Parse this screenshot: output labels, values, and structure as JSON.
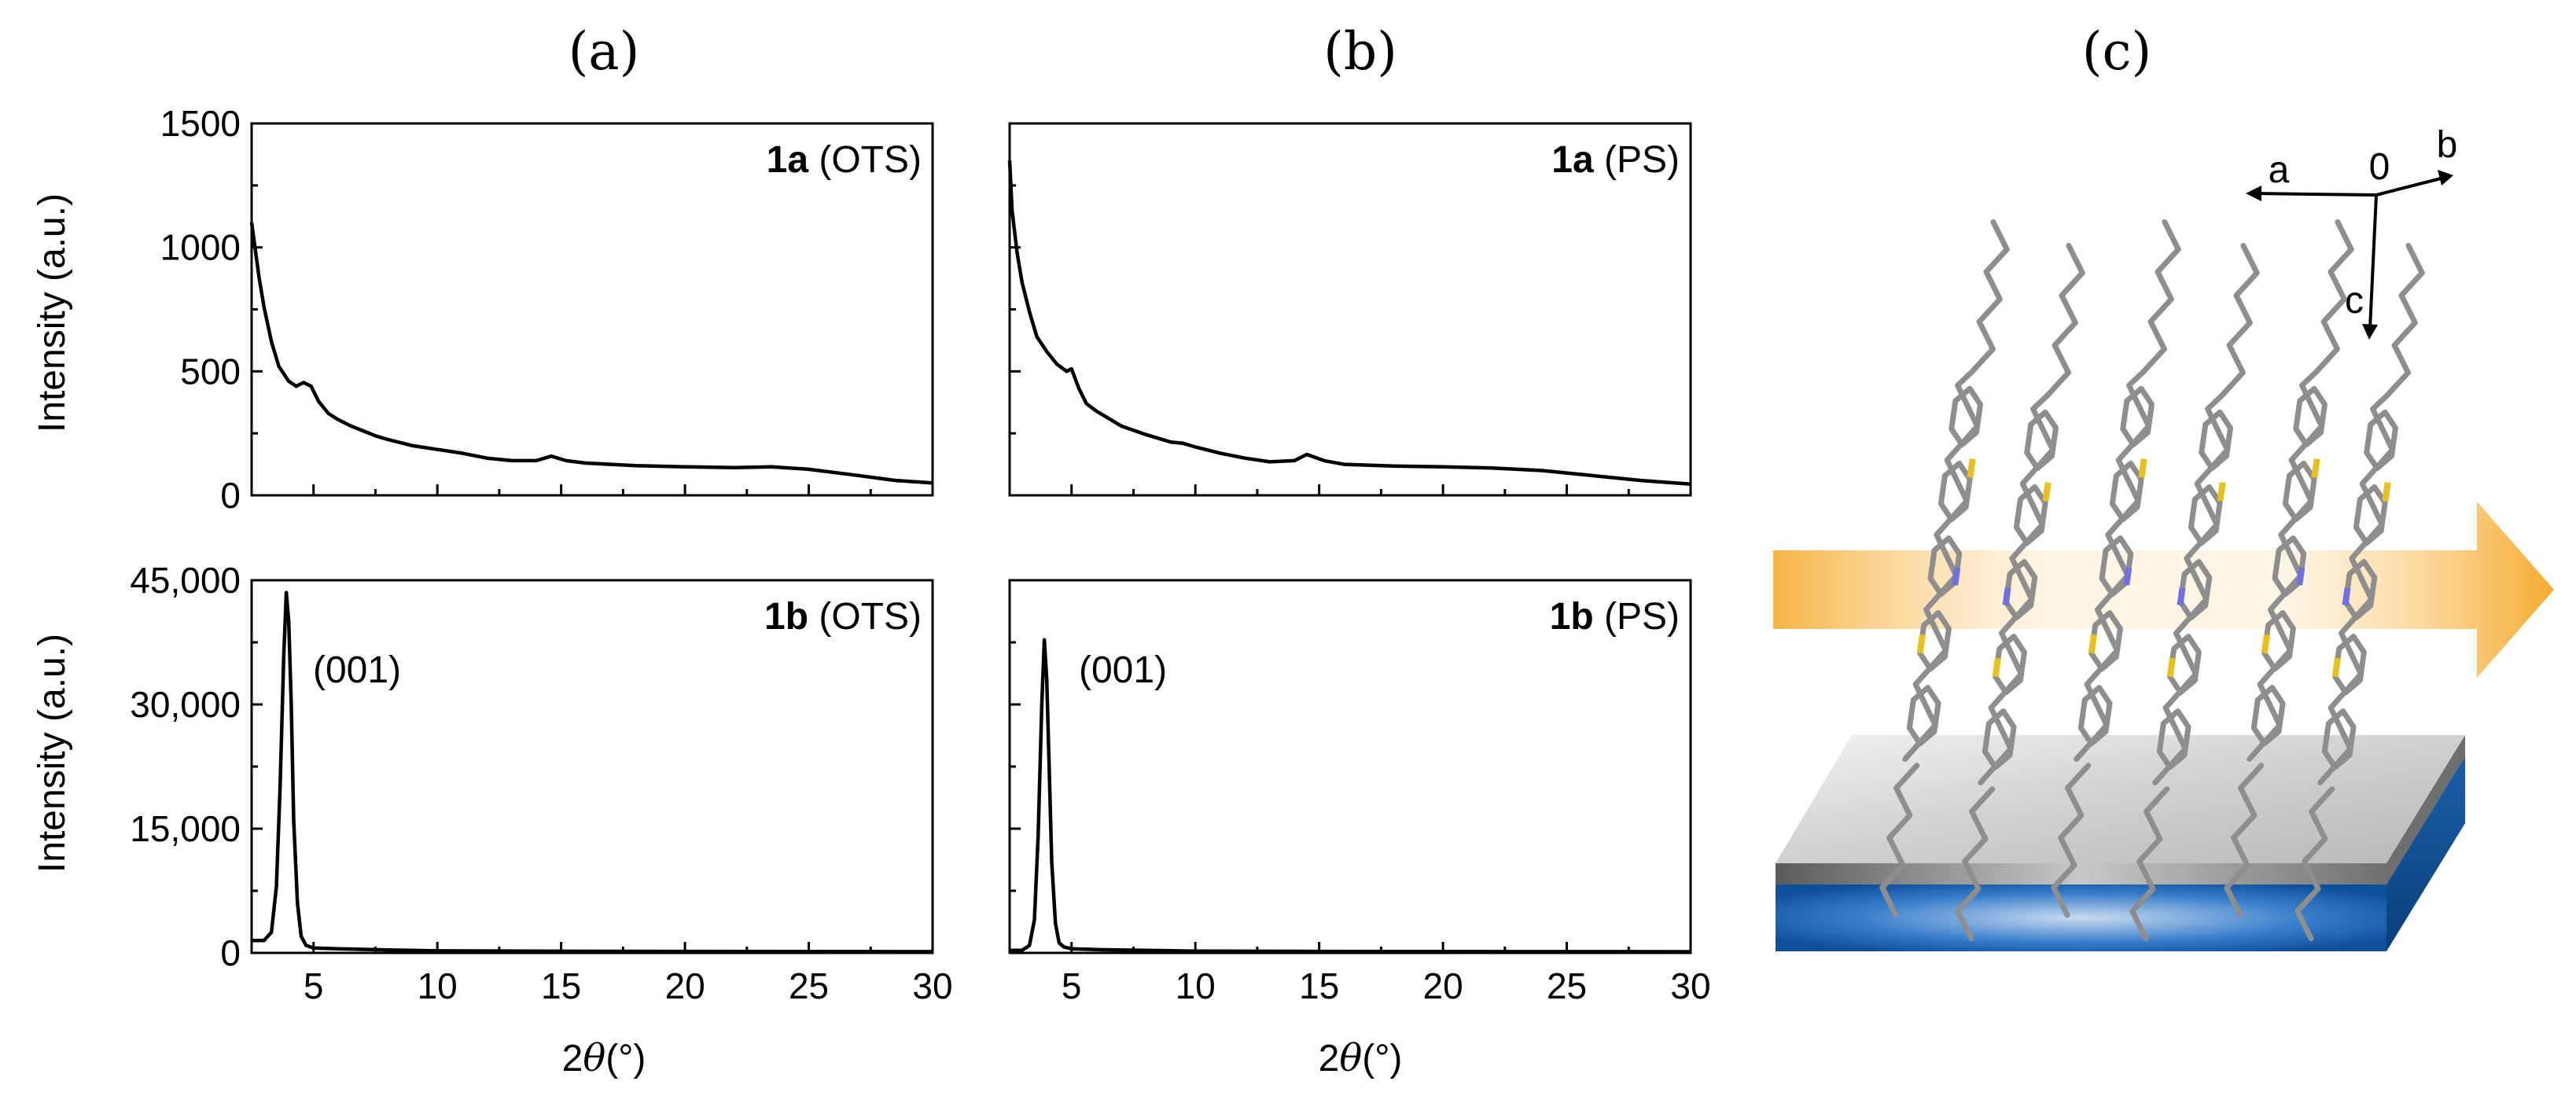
{
  "panel_labels": [
    "(a)",
    "(b)",
    "(c)"
  ],
  "axis_titles": {
    "x": "2θ(°)",
    "x_symbol": "θ",
    "x_prefix": "2",
    "x_suffix": "(°)",
    "y": "Intensity (a.u.)"
  },
  "chart_data": [
    {
      "id": "a-top",
      "type": "line",
      "panel": "(a)",
      "label_bold": "1a",
      "label_rest": " (OTS)",
      "xlim": [
        2.5,
        30
      ],
      "ylim": [
        0,
        1500
      ],
      "xticks": [
        5,
        10,
        15,
        20,
        25,
        30
      ],
      "yticks": [
        0,
        500,
        1000,
        1500
      ],
      "ytick_labels": [
        "0",
        "500",
        "1000",
        "1500"
      ],
      "series": [
        {
          "name": "1a (OTS)",
          "x": [
            2.5,
            2.8,
            3.0,
            3.3,
            3.6,
            4.0,
            4.3,
            4.6,
            4.9,
            5.2,
            5.6,
            6.0,
            6.5,
            7.0,
            7.5,
            8.0,
            9.0,
            10.0,
            11.0,
            12.0,
            13.0,
            14.0,
            14.6,
            15.2,
            16.0,
            18.0,
            20.0,
            22.0,
            23.5,
            25.0,
            27.0,
            28.5,
            30.0
          ],
          "y": [
            1100,
            880,
            760,
            620,
            520,
            460,
            440,
            455,
            440,
            380,
            330,
            305,
            280,
            260,
            240,
            225,
            200,
            185,
            170,
            150,
            140,
            140,
            158,
            140,
            130,
            120,
            115,
            112,
            115,
            105,
            80,
            60,
            50
          ]
        }
      ]
    },
    {
      "id": "a-bottom",
      "type": "line",
      "panel": "(a)",
      "label_bold": "1b",
      "label_rest": " (OTS)",
      "annotation": "(001)",
      "xlim": [
        2.5,
        30
      ],
      "ylim": [
        0,
        45000
      ],
      "xticks": [
        5,
        10,
        15,
        20,
        25,
        30
      ],
      "xtick_labels": [
        "5",
        "10",
        "15",
        "20",
        "25",
        "30"
      ],
      "yticks": [
        0,
        15000,
        30000,
        45000
      ],
      "ytick_labels": [
        "0",
        "15,000",
        "30,000",
        "45,000"
      ],
      "series": [
        {
          "name": "1b (OTS)",
          "x": [
            2.5,
            3.0,
            3.3,
            3.5,
            3.65,
            3.8,
            3.9,
            4.0,
            4.1,
            4.2,
            4.35,
            4.5,
            4.7,
            5.0,
            6.0,
            8.0,
            10.0,
            15.0,
            20.0,
            25.0,
            30.0
          ],
          "y": [
            1500,
            1500,
            2500,
            8000,
            20000,
            36000,
            43500,
            40000,
            30000,
            16000,
            6000,
            2000,
            900,
            600,
            500,
            350,
            250,
            200,
            180,
            160,
            150
          ]
        }
      ]
    },
    {
      "id": "b-top",
      "type": "line",
      "panel": "(b)",
      "label_bold": "1a",
      "label_rest": " (PS)",
      "xlim": [
        2.5,
        30
      ],
      "ylim": [
        0,
        1500
      ],
      "xticks": [
        5,
        10,
        15,
        20,
        25,
        30
      ],
      "yticks": [
        0,
        500,
        1000,
        1500
      ],
      "series": [
        {
          "name": "1a (PS)",
          "x": [
            2.5,
            2.6,
            2.8,
            3.0,
            3.3,
            3.6,
            4.0,
            4.4,
            4.8,
            5.0,
            5.3,
            5.6,
            6.0,
            6.5,
            7.0,
            8.0,
            9.0,
            9.5,
            10.0,
            11.0,
            12.0,
            13.0,
            14.0,
            14.5,
            15.2,
            16.0,
            18.0,
            20.0,
            22.0,
            24.0,
            26.0,
            28.0,
            30.0
          ],
          "y": [
            1350,
            1150,
            980,
            860,
            740,
            640,
            580,
            530,
            500,
            510,
            430,
            370,
            340,
            310,
            280,
            245,
            215,
            210,
            195,
            170,
            150,
            135,
            140,
            165,
            140,
            125,
            118,
            115,
            110,
            100,
            80,
            60,
            45
          ]
        }
      ]
    },
    {
      "id": "b-bottom",
      "type": "line",
      "panel": "(b)",
      "label_bold": "1b",
      "label_rest": " (PS)",
      "annotation": "(001)",
      "xlim": [
        2.5,
        30
      ],
      "ylim": [
        0,
        45000
      ],
      "xticks": [
        5,
        10,
        15,
        20,
        25,
        30
      ],
      "xtick_labels": [
        "5",
        "10",
        "15",
        "20",
        "25",
        "30"
      ],
      "yticks": [
        0,
        15000,
        30000,
        45000
      ],
      "series": [
        {
          "name": "1b (PS)",
          "x": [
            2.5,
            3.0,
            3.3,
            3.5,
            3.65,
            3.8,
            3.9,
            4.0,
            4.1,
            4.2,
            4.35,
            4.5,
            4.7,
            5.0,
            6.0,
            8.0,
            10.0,
            15.0,
            20.0,
            25.0,
            30.0
          ],
          "y": [
            300,
            300,
            900,
            4000,
            14000,
            30000,
            37800,
            33000,
            22000,
            11000,
            3500,
            1200,
            700,
            500,
            400,
            300,
            220,
            180,
            160,
            150,
            140
          ]
        }
      ]
    }
  ],
  "schematic": {
    "axes": {
      "a": "a",
      "b": "b",
      "c": "c",
      "origin": "0"
    },
    "colors": {
      "arrow": "#f5a623",
      "substrate_blue": "#1f6fc8",
      "substrate_gray": "#c8c8c8",
      "sulfur": "#e8c020",
      "nitrogen": "#7070e0",
      "carbon": "#8e8e8e"
    }
  }
}
